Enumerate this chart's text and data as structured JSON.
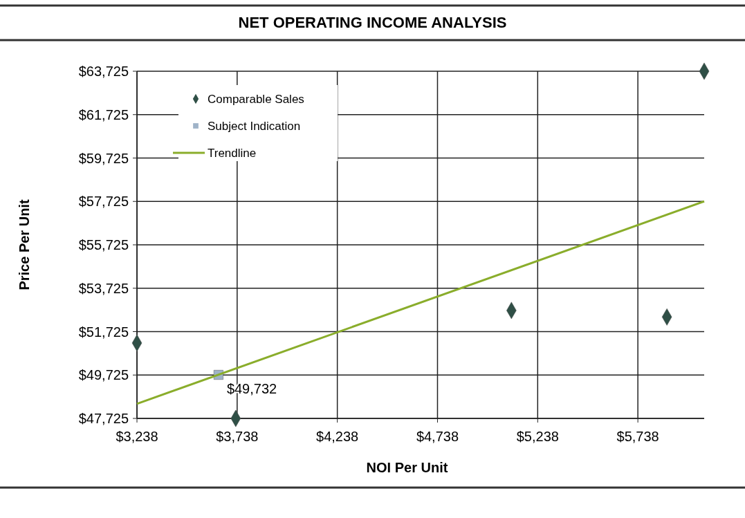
{
  "chart_data": {
    "type": "scatter",
    "title": "NET OPERATING INCOME ANALYSIS",
    "xlabel": "NOI Per Unit",
    "ylabel": "Price Per Unit",
    "xlim": [
      3238,
      6069
    ],
    "ylim": [
      47725,
      63725
    ],
    "xticks": [
      {
        "value": 3238,
        "label": "$3,238"
      },
      {
        "value": 3738,
        "label": "$3,738"
      },
      {
        "value": 4238,
        "label": "$4,238"
      },
      {
        "value": 4738,
        "label": "$4,738"
      },
      {
        "value": 5238,
        "label": "$5,238"
      },
      {
        "value": 5738,
        "label": "$5,738"
      }
    ],
    "yticks": [
      {
        "value": 47725,
        "label": "$47,725"
      },
      {
        "value": 49725,
        "label": "$49,725"
      },
      {
        "value": 51725,
        "label": "$51,725"
      },
      {
        "value": 53725,
        "label": "$53,725"
      },
      {
        "value": 55725,
        "label": "$55,725"
      },
      {
        "value": 57725,
        "label": "$57,725"
      },
      {
        "value": 59725,
        "label": "$59,725"
      },
      {
        "value": 61725,
        "label": "$61,725"
      },
      {
        "value": 63725,
        "label": "$63,725"
      }
    ],
    "grid": true,
    "legend": "top left",
    "series": [
      {
        "name": "Comparable Sales",
        "marker": "diamond",
        "color": "#2f4f46",
        "x": [
          3238,
          3731,
          5107,
          5883,
          6069
        ],
        "values": [
          51200,
          47725,
          52700,
          52400,
          63725
        ]
      },
      {
        "name": "Subject Indication",
        "marker": "square",
        "color": "#9fb3c8",
        "x": [
          3645
        ],
        "values": [
          49732
        ],
        "value_labels": [
          "$49,732"
        ]
      },
      {
        "name": "Trendline",
        "type": "line",
        "color": "#8aad2b",
        "x": [
          3238,
          6069
        ],
        "values": [
          48400,
          57725
        ]
      }
    ]
  }
}
